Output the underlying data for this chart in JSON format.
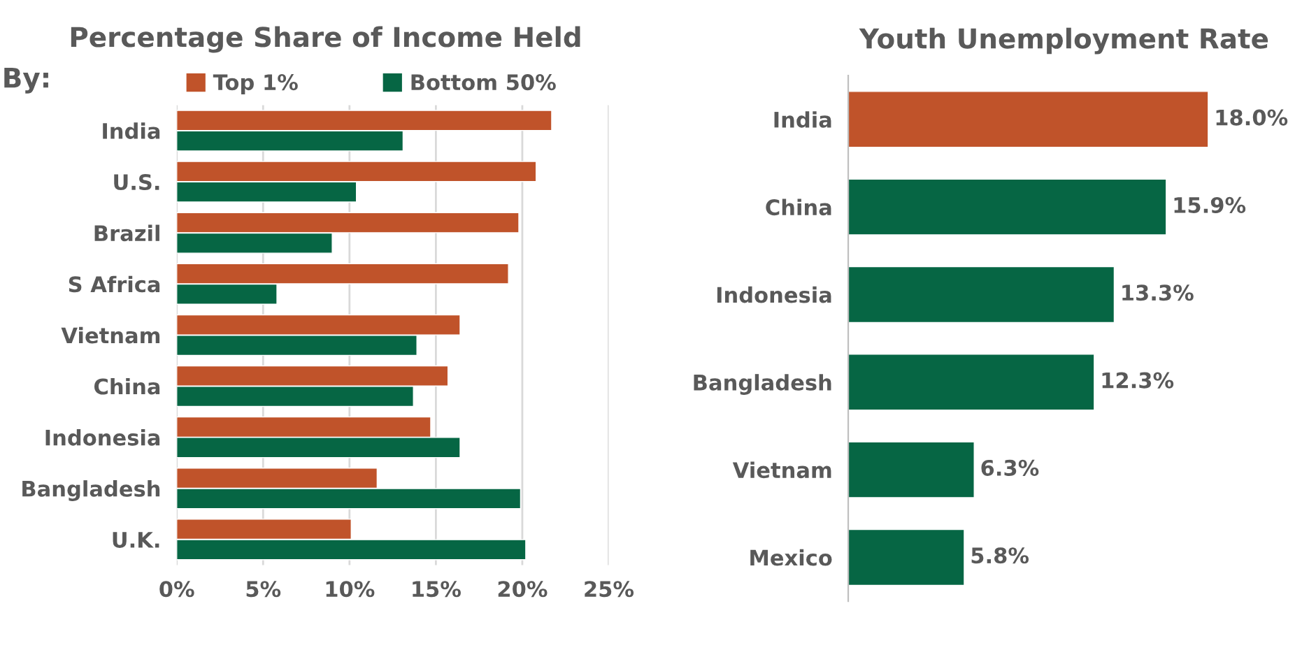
{
  "chart_data": [
    {
      "type": "bar",
      "orientation": "horizontal",
      "title": "Percentage Share of Income Held",
      "legend_title": "By:",
      "legend": "top",
      "categories": [
        "India",
        "U.S.",
        "Brazil",
        "S Africa",
        "Vietnam",
        "China",
        "Indonesia",
        "Bangladesh",
        "U.K."
      ],
      "series": [
        {
          "name": "Top 1%",
          "color": "#c0532a",
          "values": [
            21.7,
            20.8,
            19.8,
            19.2,
            16.4,
            15.7,
            14.7,
            11.6,
            10.1
          ]
        },
        {
          "name": "Bottom 50%",
          "color": "#066644",
          "values": [
            13.1,
            10.4,
            9.0,
            5.8,
            13.9,
            13.7,
            16.4,
            19.9,
            20.2
          ]
        }
      ],
      "xlim": [
        0,
        25
      ],
      "xticks": [
        {
          "value": 0,
          "label": "0%"
        },
        {
          "value": 5,
          "label": "5%"
        },
        {
          "value": 10,
          "label": "10%"
        },
        {
          "value": 15,
          "label": "15%"
        },
        {
          "value": 20,
          "label": "20%"
        },
        {
          "value": 25,
          "label": "25%"
        }
      ],
      "grid": "x"
    },
    {
      "type": "bar",
      "orientation": "horizontal",
      "title": "Youth Unemployment Rate",
      "categories": [
        "India",
        "China",
        "Indonesia",
        "Bangladesh",
        "Vietnam",
        "Mexico"
      ],
      "values": [
        18.0,
        15.9,
        13.3,
        12.3,
        6.3,
        5.8
      ],
      "colors": [
        "#c0532a",
        "#066644",
        "#066644",
        "#066644",
        "#066644",
        "#066644"
      ],
      "value_labels": [
        "18.0%",
        "15.9%",
        "13.3%",
        "12.3%",
        "6.3%",
        "5.8%"
      ]
    }
  ]
}
